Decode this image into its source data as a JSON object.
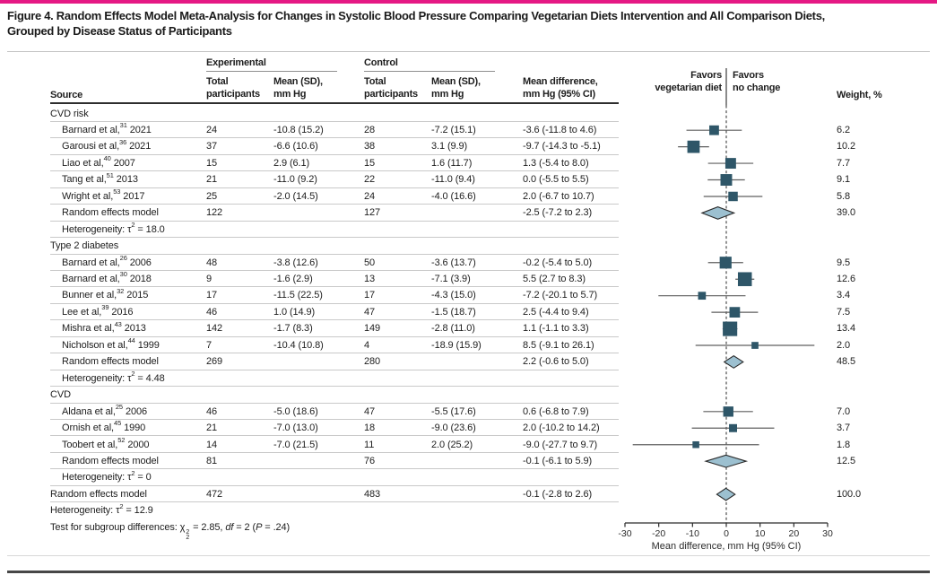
{
  "colors": {
    "accent": "#e51884",
    "marker": "#2e5668",
    "diamond_fill": "#9cc0d0",
    "diamond_stroke": "#2a2a2a",
    "whisker": "#5f5f5f",
    "zero_line": "#2a2a2a",
    "axis": "#2a2a2a"
  },
  "title": {
    "line1": "Figure 4. Random Effects Model Meta-Analysis for Changes in Systolic Blood Pressure Comparing Vegetarian Diets Intervention and All Comparison Diets,",
    "line2": "Grouped by Disease Status of Participants"
  },
  "header": {
    "source": "Source",
    "experimental": "Experimental",
    "control": "Control",
    "col_total": [
      "Total",
      "participants"
    ],
    "col_mean": [
      "Mean (SD),",
      "mm Hg"
    ],
    "col_diff": [
      "Mean difference,",
      "mm Hg (95% CI)"
    ],
    "favors_left": [
      "Favors",
      "vegetarian diet"
    ],
    "favors_right": [
      "Favors",
      "no change"
    ],
    "weight": "Weight, %"
  },
  "axis": {
    "min": -30,
    "max": 30,
    "ticks": [
      -30,
      -20,
      -10,
      0,
      10,
      20,
      30
    ],
    "label": "Mean difference, mm Hg (95% CI)"
  },
  "rows": [
    {
      "kind": "group",
      "source": [
        {
          "t": "CVD risk"
        }
      ]
    },
    {
      "kind": "study",
      "source": [
        {
          "t": "Barnard et al,"
        },
        {
          "sup": "31"
        },
        {
          "t": " 2021"
        }
      ],
      "exp_n": "24",
      "exp_mean": "-10.8 (15.2)",
      "ctrl_n": "28",
      "ctrl_mean": "-7.2 (15.1)",
      "diff": "-3.6 (-11.8 to 4.6)",
      "weight": "6.2",
      "plot": {
        "shape": "square",
        "est": -3.6,
        "lo": -11.8,
        "hi": 4.6,
        "w": 6.2
      }
    },
    {
      "kind": "study",
      "source": [
        {
          "t": "Garousi et al,"
        },
        {
          "sup": "36"
        },
        {
          "t": " 2021"
        }
      ],
      "exp_n": "37",
      "exp_mean": "-6.6 (10.6)",
      "ctrl_n": "38",
      "ctrl_mean": "3.1 (9.9)",
      "diff": "-9.7 (-14.3 to -5.1)",
      "weight": "10.2",
      "plot": {
        "shape": "square",
        "est": -9.7,
        "lo": -14.3,
        "hi": -5.1,
        "w": 10.2
      }
    },
    {
      "kind": "study",
      "source": [
        {
          "t": "Liao et al,"
        },
        {
          "sup": "40"
        },
        {
          "t": " 2007"
        }
      ],
      "exp_n": "15",
      "exp_mean": "2.9 (6.1)",
      "ctrl_n": "15",
      "ctrl_mean": "1.6 (11.7)",
      "diff": "1.3 (-5.4 to 8.0)",
      "weight": "7.7",
      "plot": {
        "shape": "square",
        "est": 1.3,
        "lo": -5.4,
        "hi": 8.0,
        "w": 7.7
      }
    },
    {
      "kind": "study",
      "source": [
        {
          "t": "Tang et al,"
        },
        {
          "sup": "51"
        },
        {
          "t": " 2013"
        }
      ],
      "exp_n": "21",
      "exp_mean": "-11.0 (9.2)",
      "ctrl_n": "22",
      "ctrl_mean": "-11.0 (9.4)",
      "diff": "0.0 (-5.5 to 5.5)",
      "weight": "9.1",
      "plot": {
        "shape": "square",
        "est": 0.0,
        "lo": -5.5,
        "hi": 5.5,
        "w": 9.1
      }
    },
    {
      "kind": "study",
      "source": [
        {
          "t": "Wright et al,"
        },
        {
          "sup": "53"
        },
        {
          "t": " 2017"
        }
      ],
      "exp_n": "25",
      "exp_mean": "-2.0 (14.5)",
      "ctrl_n": "24",
      "ctrl_mean": "-4.0 (16.6)",
      "diff": "2.0 (-6.7 to 10.7)",
      "weight": "5.8",
      "plot": {
        "shape": "square",
        "est": 2.0,
        "lo": -6.7,
        "hi": 10.7,
        "w": 5.8
      }
    },
    {
      "kind": "subtotal",
      "source": [
        {
          "t": "Random effects model"
        }
      ],
      "exp_n": "122",
      "ctrl_n": "127",
      "diff": "-2.5 (-7.2 to 2.3)",
      "weight": "39.0",
      "plot": {
        "shape": "diamond",
        "est": -2.5,
        "lo": -7.2,
        "hi": 2.3
      }
    },
    {
      "kind": "het",
      "source": [
        {
          "t": "Heterogeneity: τ"
        },
        {
          "sup": "2"
        },
        {
          "t": " = 18.0"
        }
      ]
    },
    {
      "kind": "group",
      "source": [
        {
          "t": "Type 2 diabetes"
        }
      ]
    },
    {
      "kind": "study",
      "source": [
        {
          "t": "Barnard et al,"
        },
        {
          "sup": "26"
        },
        {
          "t": " 2006"
        }
      ],
      "exp_n": "48",
      "exp_mean": "-3.8 (12.6)",
      "ctrl_n": "50",
      "ctrl_mean": "-3.6 (13.7)",
      "diff": "-0.2 (-5.4 to 5.0)",
      "weight": "9.5",
      "plot": {
        "shape": "square",
        "est": -0.2,
        "lo": -5.4,
        "hi": 5.0,
        "w": 9.5
      }
    },
    {
      "kind": "study",
      "source": [
        {
          "t": "Barnard et al,"
        },
        {
          "sup": "30"
        },
        {
          "t": " 2018"
        }
      ],
      "exp_n": "9",
      "exp_mean": "-1.6 (2.9)",
      "ctrl_n": "13",
      "ctrl_mean": "-7.1 (3.9)",
      "diff": "5.5 (2.7 to 8.3)",
      "weight": "12.6",
      "plot": {
        "shape": "square",
        "est": 5.5,
        "lo": 2.7,
        "hi": 8.3,
        "w": 12.6
      }
    },
    {
      "kind": "study",
      "source": [
        {
          "t": "Bunner et al,"
        },
        {
          "sup": "32"
        },
        {
          "t": " 2015"
        }
      ],
      "exp_n": "17",
      "exp_mean": "-11.5 (22.5)",
      "ctrl_n": "17",
      "ctrl_mean": "-4.3 (15.0)",
      "diff": "-7.2 (-20.1 to 5.7)",
      "weight": "3.4",
      "plot": {
        "shape": "square",
        "est": -7.2,
        "lo": -20.1,
        "hi": 5.7,
        "w": 3.4
      }
    },
    {
      "kind": "study",
      "source": [
        {
          "t": "Lee et al,"
        },
        {
          "sup": "39"
        },
        {
          "t": " 2016"
        }
      ],
      "exp_n": "46",
      "exp_mean": "1.0 (14.9)",
      "ctrl_n": "47",
      "ctrl_mean": "-1.5 (18.7)",
      "diff": "2.5 (-4.4 to 9.4)",
      "weight": "7.5",
      "plot": {
        "shape": "square",
        "est": 2.5,
        "lo": -4.4,
        "hi": 9.4,
        "w": 7.5
      }
    },
    {
      "kind": "study",
      "source": [
        {
          "t": "Mishra et al,"
        },
        {
          "sup": "43"
        },
        {
          "t": " 2013"
        }
      ],
      "exp_n": "142",
      "exp_mean": "-1.7 (8.3)",
      "ctrl_n": "149",
      "ctrl_mean": "-2.8 (11.0)",
      "diff": "1.1 (-1.1 to 3.3)",
      "weight": "13.4",
      "plot": {
        "shape": "square",
        "est": 1.1,
        "lo": -1.1,
        "hi": 3.3,
        "w": 13.4
      }
    },
    {
      "kind": "study",
      "source": [
        {
          "t": "Nicholson et al,"
        },
        {
          "sup": "44"
        },
        {
          "t": " 1999"
        }
      ],
      "exp_n": "7",
      "exp_mean": "-10.4 (10.8)",
      "ctrl_n": "4",
      "ctrl_mean": "-18.9 (15.9)",
      "diff": "8.5 (-9.1 to 26.1)",
      "weight": "2.0",
      "plot": {
        "shape": "square",
        "est": 8.5,
        "lo": -9.1,
        "hi": 26.1,
        "w": 2.0
      }
    },
    {
      "kind": "subtotal",
      "source": [
        {
          "t": "Random effects model"
        }
      ],
      "exp_n": "269",
      "ctrl_n": "280",
      "diff": "2.2 (-0.6 to 5.0)",
      "weight": "48.5",
      "plot": {
        "shape": "diamond",
        "est": 2.2,
        "lo": -0.6,
        "hi": 5.0
      }
    },
    {
      "kind": "het",
      "source": [
        {
          "t": "Heterogeneity: τ"
        },
        {
          "sup": "2"
        },
        {
          "t": " = 4.48"
        }
      ]
    },
    {
      "kind": "group",
      "source": [
        {
          "t": "CVD"
        }
      ]
    },
    {
      "kind": "study",
      "source": [
        {
          "t": "Aldana et al,"
        },
        {
          "sup": "25"
        },
        {
          "t": " 2006"
        }
      ],
      "exp_n": "46",
      "exp_mean": "-5.0 (18.6)",
      "ctrl_n": "47",
      "ctrl_mean": "-5.5 (17.6)",
      "diff": "0.6 (-6.8 to 7.9)",
      "weight": "7.0",
      "plot": {
        "shape": "square",
        "est": 0.6,
        "lo": -6.8,
        "hi": 7.9,
        "w": 7.0
      }
    },
    {
      "kind": "study",
      "source": [
        {
          "t": "Ornish et al,"
        },
        {
          "sup": "45"
        },
        {
          "t": " 1990"
        }
      ],
      "exp_n": "21",
      "exp_mean": "-7.0 (13.0)",
      "ctrl_n": "18",
      "ctrl_mean": "-9.0 (23.6)",
      "diff": "2.0 (-10.2 to 14.2)",
      "weight": "3.7",
      "plot": {
        "shape": "square",
        "est": 2.0,
        "lo": -10.2,
        "hi": 14.2,
        "w": 3.7
      }
    },
    {
      "kind": "study",
      "source": [
        {
          "t": "Toobert et al,"
        },
        {
          "sup": "52"
        },
        {
          "t": " 2000"
        }
      ],
      "exp_n": "14",
      "exp_mean": "-7.0 (21.5)",
      "ctrl_n": "11",
      "ctrl_mean": "2.0 (25.2)",
      "diff": "-9.0 (-27.7 to 9.7)",
      "weight": "1.8",
      "plot": {
        "shape": "square",
        "est": -9.0,
        "lo": -27.7,
        "hi": 9.7,
        "w": 1.8
      }
    },
    {
      "kind": "subtotal",
      "source": [
        {
          "t": "Random effects model"
        }
      ],
      "exp_n": "81",
      "ctrl_n": "76",
      "diff": "-0.1 (-6.1 to 5.9)",
      "weight": "12.5",
      "plot": {
        "shape": "diamond",
        "est": -0.1,
        "lo": -6.1,
        "hi": 5.9
      }
    },
    {
      "kind": "het",
      "source": [
        {
          "t": "Heterogeneity: τ"
        },
        {
          "sup": "2"
        },
        {
          "t": " = 0"
        }
      ]
    },
    {
      "kind": "overall",
      "source": [
        {
          "t": "Random effects model"
        }
      ],
      "exp_n": "472",
      "ctrl_n": "483",
      "diff": "-0.1 (-2.8 to 2.6)",
      "weight": "100.0",
      "plot": {
        "shape": "diamond",
        "est": -0.1,
        "lo": -2.8,
        "hi": 2.6
      }
    },
    {
      "kind": "note",
      "source": [
        {
          "t": "Heterogeneity: τ"
        },
        {
          "sup": "2"
        },
        {
          "t": " = 12.9"
        }
      ]
    },
    {
      "kind": "note",
      "source": [
        {
          "t": "Test for subgroup differences: χ"
        },
        {
          "ss": [
            "2",
            "2"
          ]
        },
        {
          "t": " = 2.85, "
        },
        {
          "i": "df"
        },
        {
          "t": " = 2 ("
        },
        {
          "i": "P"
        },
        {
          "t": " = .24)"
        }
      ]
    }
  ],
  "chart_data": {
    "type": "forest",
    "title": "Figure 4. Random Effects Model Meta-Analysis for Changes in Systolic Blood Pressure Comparing Vegetarian Diets Intervention and All Comparison Diets, Grouped by Disease Status of Participants",
    "xlabel": "Mean difference, mm Hg (95% CI)",
    "xlim": [
      -30,
      30
    ],
    "xticks": [
      -30,
      -20,
      -10,
      0,
      10,
      20,
      30
    ],
    "null_line": 0,
    "favors": {
      "left_of_zero": "Favors vegetarian diet",
      "right_of_zero": "Favors no change"
    },
    "groups": [
      {
        "name": "CVD risk",
        "tau2": 18.0,
        "studies": [
          {
            "label": "Barnard et al 2021",
            "ref": 31,
            "exp_n": 24,
            "exp_mean": -10.8,
            "exp_sd": 15.2,
            "ctrl_n": 28,
            "ctrl_mean": -7.2,
            "ctrl_sd": 15.1,
            "est": -3.6,
            "ci": [
              -11.8,
              4.6
            ],
            "weight_pct": 6.2
          },
          {
            "label": "Garousi et al 2021",
            "ref": 36,
            "exp_n": 37,
            "exp_mean": -6.6,
            "exp_sd": 10.6,
            "ctrl_n": 38,
            "ctrl_mean": 3.1,
            "ctrl_sd": 9.9,
            "est": -9.7,
            "ci": [
              -14.3,
              -5.1
            ],
            "weight_pct": 10.2
          },
          {
            "label": "Liao et al 2007",
            "ref": 40,
            "exp_n": 15,
            "exp_mean": 2.9,
            "exp_sd": 6.1,
            "ctrl_n": 15,
            "ctrl_mean": 1.6,
            "ctrl_sd": 11.7,
            "est": 1.3,
            "ci": [
              -5.4,
              8.0
            ],
            "weight_pct": 7.7
          },
          {
            "label": "Tang et al 2013",
            "ref": 51,
            "exp_n": 21,
            "exp_mean": -11.0,
            "exp_sd": 9.2,
            "ctrl_n": 22,
            "ctrl_mean": -11.0,
            "ctrl_sd": 9.4,
            "est": 0.0,
            "ci": [
              -5.5,
              5.5
            ],
            "weight_pct": 9.1
          },
          {
            "label": "Wright et al 2017",
            "ref": 53,
            "exp_n": 25,
            "exp_mean": -2.0,
            "exp_sd": 14.5,
            "ctrl_n": 24,
            "ctrl_mean": -4.0,
            "ctrl_sd": 16.6,
            "est": 2.0,
            "ci": [
              -6.7,
              10.7
            ],
            "weight_pct": 5.8
          }
        ],
        "subtotal": {
          "exp_n": 122,
          "ctrl_n": 127,
          "est": -2.5,
          "ci": [
            -7.2,
            2.3
          ],
          "weight_pct": 39.0
        }
      },
      {
        "name": "Type 2 diabetes",
        "tau2": 4.48,
        "studies": [
          {
            "label": "Barnard et al 2006",
            "ref": 26,
            "exp_n": 48,
            "exp_mean": -3.8,
            "exp_sd": 12.6,
            "ctrl_n": 50,
            "ctrl_mean": -3.6,
            "ctrl_sd": 13.7,
            "est": -0.2,
            "ci": [
              -5.4,
              5.0
            ],
            "weight_pct": 9.5
          },
          {
            "label": "Barnard et al 2018",
            "ref": 30,
            "exp_n": 9,
            "exp_mean": -1.6,
            "exp_sd": 2.9,
            "ctrl_n": 13,
            "ctrl_mean": -7.1,
            "ctrl_sd": 3.9,
            "est": 5.5,
            "ci": [
              2.7,
              8.3
            ],
            "weight_pct": 12.6
          },
          {
            "label": "Bunner et al 2015",
            "ref": 32,
            "exp_n": 17,
            "exp_mean": -11.5,
            "exp_sd": 22.5,
            "ctrl_n": 17,
            "ctrl_mean": -4.3,
            "ctrl_sd": 15.0,
            "est": -7.2,
            "ci": [
              -20.1,
              5.7
            ],
            "weight_pct": 3.4
          },
          {
            "label": "Lee et al 2016",
            "ref": 39,
            "exp_n": 46,
            "exp_mean": 1.0,
            "exp_sd": 14.9,
            "ctrl_n": 47,
            "ctrl_mean": -1.5,
            "ctrl_sd": 18.7,
            "est": 2.5,
            "ci": [
              -4.4,
              9.4
            ],
            "weight_pct": 7.5
          },
          {
            "label": "Mishra et al 2013",
            "ref": 43,
            "exp_n": 142,
            "exp_mean": -1.7,
            "exp_sd": 8.3,
            "ctrl_n": 149,
            "ctrl_mean": -2.8,
            "ctrl_sd": 11.0,
            "est": 1.1,
            "ci": [
              -1.1,
              3.3
            ],
            "weight_pct": 13.4
          },
          {
            "label": "Nicholson et al 1999",
            "ref": 44,
            "exp_n": 7,
            "exp_mean": -10.4,
            "exp_sd": 10.8,
            "ctrl_n": 4,
            "ctrl_mean": -18.9,
            "ctrl_sd": 15.9,
            "est": 8.5,
            "ci": [
              -9.1,
              26.1
            ],
            "weight_pct": 2.0
          }
        ],
        "subtotal": {
          "exp_n": 269,
          "ctrl_n": 280,
          "est": 2.2,
          "ci": [
            -0.6,
            5.0
          ],
          "weight_pct": 48.5
        }
      },
      {
        "name": "CVD",
        "tau2": 0,
        "studies": [
          {
            "label": "Aldana et al 2006",
            "ref": 25,
            "exp_n": 46,
            "exp_mean": -5.0,
            "exp_sd": 18.6,
            "ctrl_n": 47,
            "ctrl_mean": -5.5,
            "ctrl_sd": 17.6,
            "est": 0.6,
            "ci": [
              -6.8,
              7.9
            ],
            "weight_pct": 7.0
          },
          {
            "label": "Ornish et al 1990",
            "ref": 45,
            "exp_n": 21,
            "exp_mean": -7.0,
            "exp_sd": 13.0,
            "ctrl_n": 18,
            "ctrl_mean": -9.0,
            "ctrl_sd": 23.6,
            "est": 2.0,
            "ci": [
              -10.2,
              14.2
            ],
            "weight_pct": 3.7
          },
          {
            "label": "Toobert et al 2000",
            "ref": 52,
            "exp_n": 14,
            "exp_mean": -7.0,
            "exp_sd": 21.5,
            "ctrl_n": 11,
            "ctrl_mean": 2.0,
            "ctrl_sd": 25.2,
            "est": -9.0,
            "ci": [
              -27.7,
              9.7
            ],
            "weight_pct": 1.8
          }
        ],
        "subtotal": {
          "exp_n": 81,
          "ctrl_n": 76,
          "est": -0.1,
          "ci": [
            -6.1,
            5.9
          ],
          "weight_pct": 12.5
        }
      }
    ],
    "overall": {
      "exp_n": 472,
      "ctrl_n": 483,
      "est": -0.1,
      "ci": [
        -2.8,
        2.6
      ],
      "weight_pct": 100.0,
      "tau2": 12.9
    },
    "subgroup_test": "χ²₂ = 2.85, df = 2 (P = .24)"
  }
}
